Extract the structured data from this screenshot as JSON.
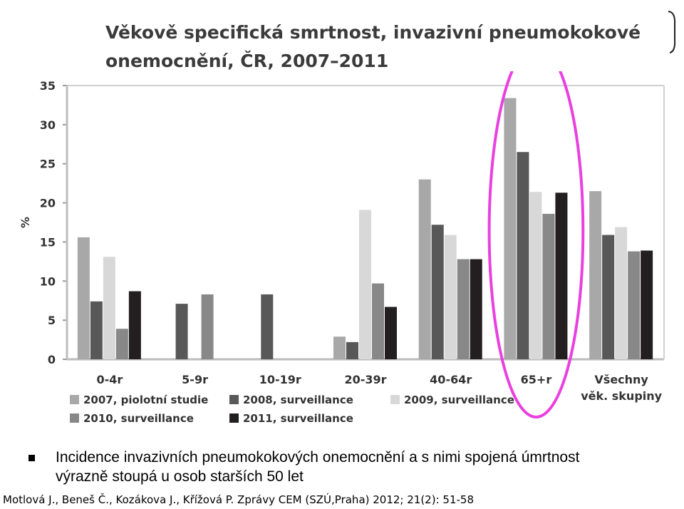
{
  "chart_data": {
    "type": "bar",
    "title_line1": "Věkově specifická smrtnost, invazivní pneumokokové",
    "title_line2": "onemocnění, ČR, 2007–2011",
    "ylabel": "%",
    "xlabel": "",
    "ylim": [
      0,
      35
    ],
    "yticks": [
      "0",
      "5",
      "10",
      "15",
      "20",
      "25",
      "30",
      "35"
    ],
    "grid": false,
    "legend_position": "bottom",
    "categories": [
      [
        "0-4r"
      ],
      [
        "5-9r"
      ],
      [
        "10-19r"
      ],
      [
        "20-39r"
      ],
      [
        "40-64r"
      ],
      [
        "65+r"
      ],
      [
        "Všechny",
        "věk. skupiny"
      ]
    ],
    "series": [
      {
        "name": "2007, piolotní studie",
        "color": "#a8a8a8",
        "values": [
          15.6,
          0,
          0,
          2.9,
          23.0,
          33.4,
          21.5
        ]
      },
      {
        "name": "2008, surveillance",
        "color": "#585858",
        "values": [
          7.4,
          7.1,
          8.3,
          2.2,
          17.2,
          26.5,
          15.9
        ]
      },
      {
        "name": "2009, surveillance",
        "color": "#d8d8d8",
        "values": [
          13.1,
          0,
          0,
          19.1,
          15.9,
          21.4,
          16.9
        ]
      },
      {
        "name": "2010, surveillance",
        "color": "#888888",
        "values": [
          3.9,
          8.3,
          0,
          9.7,
          12.8,
          18.6,
          13.8
        ]
      },
      {
        "name": "2011, surveillance",
        "color": "#231f20",
        "values": [
          8.7,
          0,
          0,
          6.7,
          12.8,
          21.3,
          13.9
        ]
      }
    ],
    "highlight": {
      "category": "65+r",
      "color": "#e940e0"
    }
  },
  "bullet": {
    "line1": "Incidence invazivních pneumokokových onemocnění a s nimi spojená úmrtnost",
    "line2": "výrazně stoupá u osob starších 50 let"
  },
  "citation": "Motlová J., Beneš Č., Kozákova J., Křížová P. Zprávy CEM (SZÚ,Praha) 2012; 21(2): 51-58"
}
